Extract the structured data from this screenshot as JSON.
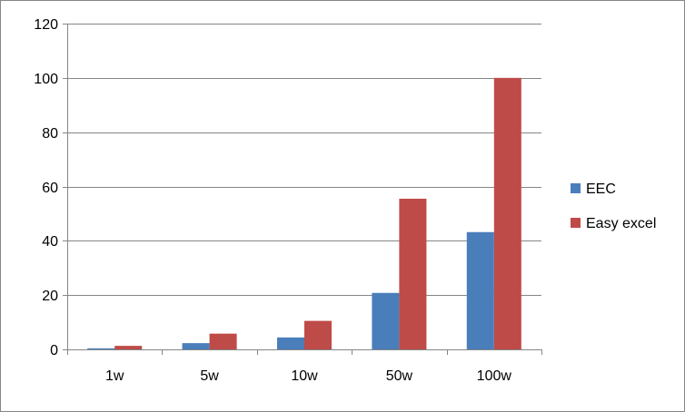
{
  "chart_data": {
    "type": "bar",
    "title": "",
    "xlabel": "",
    "ylabel": "",
    "categories": [
      "1w",
      "5w",
      "10w",
      "50w",
      "100w"
    ],
    "series": [
      {
        "name": "EEC",
        "color": "#4a7ebb",
        "values": [
          0.4,
          2.3,
          4.4,
          20.8,
          43.2
        ]
      },
      {
        "name": "Easy excel",
        "color": "#be4b48",
        "values": [
          1.3,
          5.8,
          10.5,
          55.5,
          100
        ]
      }
    ],
    "ylim": [
      0,
      120
    ],
    "yticks": [
      0,
      20,
      40,
      60,
      80,
      100,
      120
    ],
    "ytick_labels": [
      "0",
      "20",
      "40",
      "60",
      "80",
      "100",
      "120"
    ],
    "grid": true,
    "legend": "right"
  }
}
